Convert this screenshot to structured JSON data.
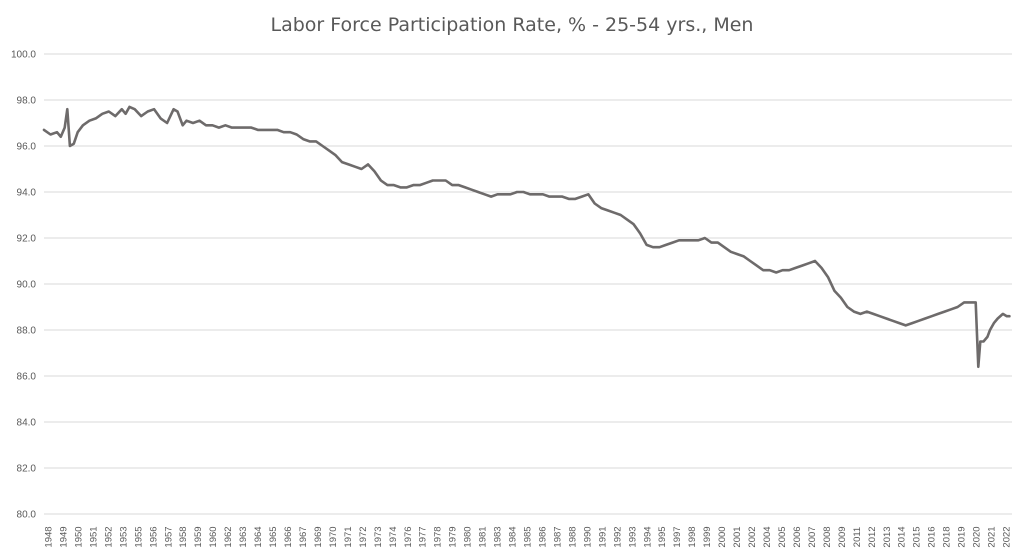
{
  "chart_data": {
    "type": "line",
    "title": "Labor Force Participation Rate, % - 25-54 yrs., Men",
    "xlabel": "",
    "ylabel": "",
    "ylim": [
      80,
      100
    ],
    "y_ticks": [
      "80.0",
      "82.0",
      "84.0",
      "86.0",
      "88.0",
      "90.0",
      "92.0",
      "94.0",
      "96.0",
      "98.0",
      "100.0"
    ],
    "x_tick_labels": [
      "1948",
      "1949",
      "1950",
      "1951",
      "1952",
      "1953",
      "1955",
      "1956",
      "1957",
      "1958",
      "1959",
      "1960",
      "1962",
      "1963",
      "1964",
      "1965",
      "1966",
      "1967",
      "1969",
      "1970",
      "1971",
      "1972",
      "1973",
      "1974",
      "1976",
      "1977",
      "1978",
      "1979",
      "1980",
      "1981",
      "1983",
      "1984",
      "1985",
      "1986",
      "1987",
      "1988",
      "1990",
      "1991",
      "1992",
      "1993",
      "1994",
      "1995",
      "1997",
      "1998",
      "1999",
      "2000",
      "2001",
      "2002",
      "2004",
      "2005",
      "2006",
      "2007",
      "2008",
      "2009",
      "2011",
      "2012",
      "2013",
      "2014",
      "2015",
      "2016",
      "2018",
      "2019",
      "2020",
      "2021",
      "2022"
    ],
    "grid": "horizontal",
    "legend": "none",
    "colors": {
      "series": "#6e6b6b",
      "grid": "#d9d9d9",
      "text": "#595959"
    },
    "series": [
      {
        "x": [
          1948.0,
          1948.5,
          1949.0,
          1949.3,
          1949.6,
          1949.8,
          1950.0,
          1950.3,
          1950.6,
          1951.0,
          1951.5,
          1952.0,
          1952.5,
          1953.0,
          1953.5,
          1954.0,
          1954.3,
          1954.6,
          1955.0,
          1955.5,
          1956.0,
          1956.5,
          1957.0,
          1957.5,
          1958.0,
          1958.3,
          1958.7,
          1959.0,
          1959.5,
          1960.0,
          1960.5,
          1961.0,
          1961.5,
          1962.0,
          1962.5,
          1963.0,
          1963.5,
          1964.0,
          1964.5,
          1965.0,
          1965.5,
          1966.0,
          1966.5,
          1967.0,
          1967.5,
          1968.0,
          1968.5,
          1969.0,
          1969.5,
          1970.0,
          1970.5,
          1971.0,
          1971.5,
          1972.0,
          1972.5,
          1973.0,
          1973.5,
          1974.0,
          1974.5,
          1975.0,
          1975.5,
          1976.0,
          1976.5,
          1977.0,
          1977.5,
          1978.0,
          1978.5,
          1979.0,
          1979.5,
          1980.0,
          1980.5,
          1981.0,
          1981.5,
          1982.0,
          1982.5,
          1983.0,
          1983.5,
          1984.0,
          1984.5,
          1985.0,
          1985.5,
          1986.0,
          1986.5,
          1987.0,
          1987.5,
          1988.0,
          1988.5,
          1989.0,
          1989.5,
          1990.0,
          1990.5,
          1991.0,
          1991.5,
          1992.0,
          1992.5,
          1993.0,
          1993.5,
          1994.0,
          1994.5,
          1995.0,
          1995.5,
          1996.0,
          1996.5,
          1997.0,
          1997.5,
          1998.0,
          1998.5,
          1999.0,
          1999.5,
          2000.0,
          2000.5,
          2001.0,
          2001.5,
          2002.0,
          2002.5,
          2003.0,
          2003.5,
          2004.0,
          2004.5,
          2005.0,
          2005.5,
          2006.0,
          2006.5,
          2007.0,
          2007.5,
          2008.0,
          2008.5,
          2009.0,
          2009.5,
          2010.0,
          2010.5,
          2011.0,
          2011.5,
          2012.0,
          2012.5,
          2013.0,
          2013.5,
          2014.0,
          2014.5,
          2015.0,
          2015.5,
          2016.0,
          2016.5,
          2017.0,
          2017.5,
          2018.0,
          2018.5,
          2019.0,
          2019.5,
          2019.9,
          2020.1,
          2020.25,
          2020.5,
          2020.8,
          2021.0,
          2021.3,
          2021.6,
          2022.0,
          2022.3,
          2022.5
        ],
        "values": [
          96.7,
          96.5,
          96.6,
          96.4,
          96.8,
          97.6,
          96.0,
          96.1,
          96.6,
          96.9,
          97.1,
          97.2,
          97.4,
          97.5,
          97.3,
          97.6,
          97.4,
          97.7,
          97.6,
          97.3,
          97.5,
          97.6,
          97.2,
          97.0,
          97.6,
          97.5,
          96.9,
          97.1,
          97.0,
          97.1,
          96.9,
          96.9,
          96.8,
          96.9,
          96.8,
          96.8,
          96.8,
          96.8,
          96.7,
          96.7,
          96.7,
          96.7,
          96.6,
          96.6,
          96.5,
          96.3,
          96.2,
          96.2,
          96.0,
          95.8,
          95.6,
          95.3,
          95.2,
          95.1,
          95.0,
          95.2,
          94.9,
          94.5,
          94.3,
          94.3,
          94.2,
          94.2,
          94.3,
          94.3,
          94.4,
          94.5,
          94.5,
          94.5,
          94.3,
          94.3,
          94.2,
          94.1,
          94.0,
          93.9,
          93.8,
          93.9,
          93.9,
          93.9,
          94.0,
          94.0,
          93.9,
          93.9,
          93.9,
          93.8,
          93.8,
          93.8,
          93.7,
          93.7,
          93.8,
          93.9,
          93.5,
          93.3,
          93.2,
          93.1,
          93.0,
          92.8,
          92.6,
          92.2,
          91.7,
          91.6,
          91.6,
          91.7,
          91.8,
          91.9,
          91.9,
          91.9,
          91.9,
          92.0,
          91.8,
          91.8,
          91.6,
          91.4,
          91.3,
          91.2,
          91.0,
          90.8,
          90.6,
          90.6,
          90.5,
          90.6,
          90.6,
          90.7,
          90.8,
          90.9,
          91.0,
          90.7,
          90.3,
          89.7,
          89.4,
          89.0,
          88.8,
          88.7,
          88.8,
          88.7,
          88.6,
          88.5,
          88.4,
          88.3,
          88.2,
          88.3,
          88.4,
          88.5,
          88.6,
          88.7,
          88.8,
          88.9,
          89.0,
          89.2,
          89.2,
          89.2,
          86.4,
          87.5,
          87.5,
          87.7,
          88.0,
          88.3,
          88.5,
          88.7,
          88.6,
          88.6
        ]
      }
    ]
  }
}
